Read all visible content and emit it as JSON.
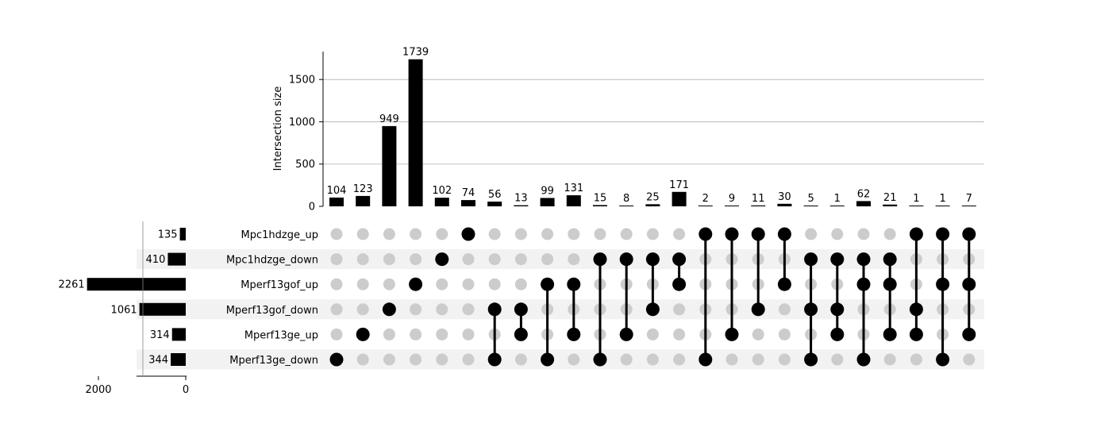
{
  "chart_data": {
    "type": "upset",
    "intersection_axis": {
      "label": "Intersection size",
      "ylim": [
        0,
        1830
      ],
      "ticks": [
        0,
        500,
        1000,
        1500
      ],
      "grid": true
    },
    "set_size_axis": {
      "xlim": [
        2000,
        0
      ],
      "ticks": [
        2000,
        0
      ]
    },
    "sets": [
      {
        "name": "Mpc1hdzge_up",
        "size": 135
      },
      {
        "name": "Mpc1hdzge_down",
        "size": 410
      },
      {
        "name": "Mperf13gof_up",
        "size": 2261
      },
      {
        "name": "Mperf13gof_down",
        "size": 1061
      },
      {
        "name": "Mperf13ge_up",
        "size": 314
      },
      {
        "name": "Mperf13ge_down",
        "size": 344
      }
    ],
    "intersections": [
      {
        "sets": [
          "Mperf13ge_down"
        ],
        "size": 104
      },
      {
        "sets": [
          "Mperf13ge_up"
        ],
        "size": 123
      },
      {
        "sets": [
          "Mperf13gof_down"
        ],
        "size": 949
      },
      {
        "sets": [
          "Mperf13gof_up"
        ],
        "size": 1739
      },
      {
        "sets": [
          "Mpc1hdzge_down"
        ],
        "size": 102
      },
      {
        "sets": [
          "Mpc1hdzge_up"
        ],
        "size": 74
      },
      {
        "sets": [
          "Mperf13gof_down",
          "Mperf13ge_down"
        ],
        "size": 56
      },
      {
        "sets": [
          "Mperf13gof_down",
          "Mperf13ge_up"
        ],
        "size": 13
      },
      {
        "sets": [
          "Mperf13gof_up",
          "Mperf13ge_down"
        ],
        "size": 99
      },
      {
        "sets": [
          "Mperf13gof_up",
          "Mperf13ge_up"
        ],
        "size": 131
      },
      {
        "sets": [
          "Mpc1hdzge_down",
          "Mperf13ge_down"
        ],
        "size": 15
      },
      {
        "sets": [
          "Mpc1hdzge_down",
          "Mperf13ge_up"
        ],
        "size": 8
      },
      {
        "sets": [
          "Mpc1hdzge_down",
          "Mperf13gof_down"
        ],
        "size": 25
      },
      {
        "sets": [
          "Mpc1hdzge_down",
          "Mperf13gof_up"
        ],
        "size": 171
      },
      {
        "sets": [
          "Mpc1hdzge_up",
          "Mperf13ge_down"
        ],
        "size": 2
      },
      {
        "sets": [
          "Mpc1hdzge_up",
          "Mperf13ge_up"
        ],
        "size": 9
      },
      {
        "sets": [
          "Mpc1hdzge_up",
          "Mperf13gof_down"
        ],
        "size": 11
      },
      {
        "sets": [
          "Mpc1hdzge_up",
          "Mperf13gof_up"
        ],
        "size": 30
      },
      {
        "sets": [
          "Mpc1hdzge_down",
          "Mperf13gof_down",
          "Mperf13ge_down"
        ],
        "size": 5
      },
      {
        "sets": [
          "Mpc1hdzge_down",
          "Mperf13gof_down",
          "Mperf13ge_up"
        ],
        "size": 1
      },
      {
        "sets": [
          "Mpc1hdzge_down",
          "Mperf13gof_up",
          "Mperf13ge_down"
        ],
        "size": 62
      },
      {
        "sets": [
          "Mpc1hdzge_down",
          "Mperf13gof_up",
          "Mperf13ge_up"
        ],
        "size": 21
      },
      {
        "sets": [
          "Mpc1hdzge_up",
          "Mperf13gof_down",
          "Mperf13ge_up"
        ],
        "size": 1
      },
      {
        "sets": [
          "Mpc1hdzge_up",
          "Mperf13gof_up",
          "Mperf13ge_down"
        ],
        "size": 1
      },
      {
        "sets": [
          "Mpc1hdzge_up",
          "Mperf13gof_up",
          "Mperf13ge_up"
        ],
        "size": 7
      }
    ],
    "colors": {
      "bar": "#000000",
      "dot_active": "#000000",
      "dot_inactive": "#cccccc",
      "stripe": "#f2f2f2",
      "grid": "#b0b0b0"
    }
  }
}
